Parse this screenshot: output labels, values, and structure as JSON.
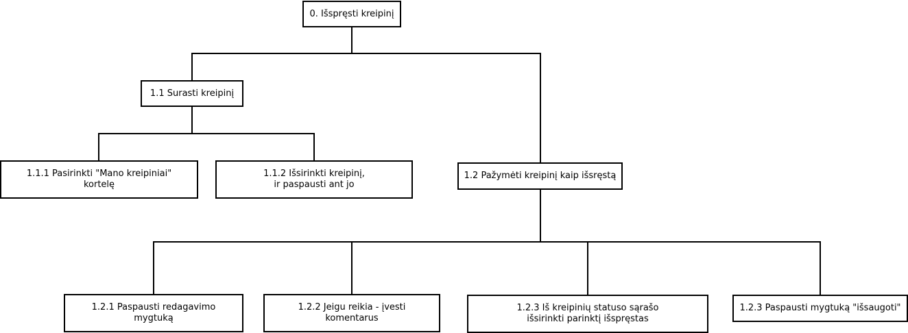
{
  "diagram": {
    "nodes": [
      {
        "id": "0",
        "label": "0. Išspręsti kreipinį"
      },
      {
        "id": "1.1",
        "label": "1.1 Surasti kreipinį"
      },
      {
        "id": "1.1.1",
        "label": "1.1.1 Pasirinkti \"Mano kreipiniai\"\nkortelę"
      },
      {
        "id": "1.1.2",
        "label": "1.1.2 Išsirinkti kreipinį,\nir paspausti ant jo"
      },
      {
        "id": "1.2",
        "label": "1.2 Pažymėti kreipinį kaip išsręstą"
      },
      {
        "id": "1.2.1",
        "label": "1.2.1 Paspausti redagavimo\nmygtuką"
      },
      {
        "id": "1.2.2",
        "label": "1.2.2 Jeigu reikia - įvesti\nkomentarus"
      },
      {
        "id": "1.2.3a",
        "label": "1.2.3 Iš kreipinių statuso sąrašo\nišsirinkti parinktį išspręstas"
      },
      {
        "id": "1.2.3b",
        "label": "1.2.3 Paspausti mygtuką \"išsaugoti\""
      }
    ],
    "edges": [
      {
        "from": "0",
        "to": "1.1"
      },
      {
        "from": "0",
        "to": "1.2"
      },
      {
        "from": "1.1",
        "to": "1.1.1"
      },
      {
        "from": "1.1",
        "to": "1.1.2"
      },
      {
        "from": "1.2",
        "to": "1.2.1"
      },
      {
        "from": "1.2",
        "to": "1.2.2"
      },
      {
        "from": "1.2",
        "to": "1.2.3a"
      },
      {
        "from": "1.2",
        "to": "1.2.3b"
      }
    ],
    "colors": {
      "stroke": "#000000",
      "fill": "#ffffff",
      "text": "#000000"
    }
  }
}
